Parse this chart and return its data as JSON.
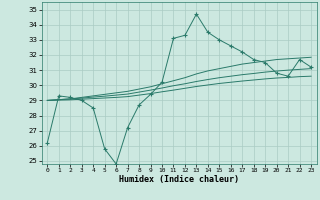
{
  "xlabel": "Humidex (Indice chaleur)",
  "background_color": "#cce8e0",
  "grid_color": "#aaccc4",
  "line_color": "#2a7a6a",
  "xlim": [
    -0.5,
    23.5
  ],
  "ylim": [
    24.8,
    35.5
  ],
  "yticks": [
    25,
    26,
    27,
    28,
    29,
    30,
    31,
    32,
    33,
    34,
    35
  ],
  "xticks": [
    0,
    1,
    2,
    3,
    4,
    5,
    6,
    7,
    8,
    9,
    10,
    11,
    12,
    13,
    14,
    15,
    16,
    17,
    18,
    19,
    20,
    21,
    22,
    23
  ],
  "series": [
    [
      26.2,
      29.3,
      29.2,
      29.0,
      28.5,
      25.8,
      24.8,
      27.2,
      28.7,
      29.4,
      30.2,
      33.1,
      33.3,
      34.7,
      33.5,
      33.0,
      32.6,
      32.2,
      31.7,
      31.5,
      30.8,
      30.6,
      31.7,
      31.2
    ],
    [
      29.0,
      29.05,
      29.1,
      29.2,
      29.3,
      29.4,
      29.5,
      29.6,
      29.75,
      29.9,
      30.1,
      30.3,
      30.5,
      30.75,
      30.95,
      31.1,
      31.25,
      31.4,
      31.5,
      31.6,
      31.7,
      31.75,
      31.8,
      31.85
    ],
    [
      29.0,
      29.05,
      29.1,
      29.15,
      29.22,
      29.28,
      29.35,
      29.42,
      29.55,
      29.68,
      29.82,
      29.97,
      30.1,
      30.25,
      30.38,
      30.5,
      30.6,
      30.7,
      30.78,
      30.87,
      30.94,
      31.0,
      31.05,
      31.1
    ],
    [
      29.0,
      29.02,
      29.04,
      29.08,
      29.12,
      29.16,
      29.2,
      29.25,
      29.35,
      29.45,
      29.57,
      29.68,
      29.8,
      29.92,
      30.02,
      30.12,
      30.2,
      30.28,
      30.35,
      30.42,
      30.48,
      30.52,
      30.57,
      30.6
    ]
  ]
}
